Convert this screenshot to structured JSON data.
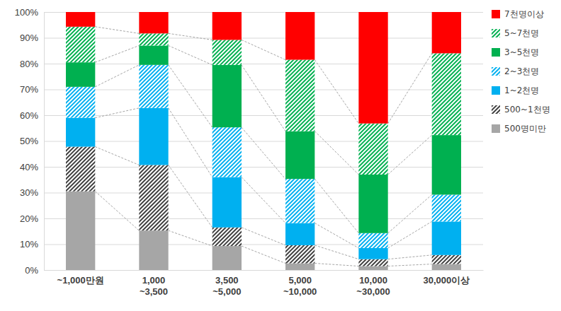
{
  "chart_data": {
    "type": "bar",
    "stacked": true,
    "grid": true,
    "legend": "right",
    "categories": [
      "~1,000만원",
      "1,000\n~3,500",
      "3,500\n~5,000",
      "5,000\n~10,000",
      "10,000\n~30,000",
      "30,000이상"
    ],
    "ylim": [
      0,
      100
    ],
    "yticks": [
      {
        "value": 0,
        "label": "0%"
      },
      {
        "value": 10,
        "label": "10%"
      },
      {
        "value": 20,
        "label": "20%"
      },
      {
        "value": 30,
        "label": "30%"
      },
      {
        "value": 40,
        "label": "40%"
      },
      {
        "value": 50,
        "label": "50%"
      },
      {
        "value": 60,
        "label": "60%"
      },
      {
        "value": 70,
        "label": "70%"
      },
      {
        "value": 80,
        "label": "80%"
      },
      {
        "value": 90,
        "label": "90%"
      },
      {
        "value": 100,
        "label": "100%"
      }
    ],
    "series": [
      {
        "name": "500명미만",
        "color": "#a6a6a6",
        "values": [
          30.5,
          15.3,
          9.3,
          2.6,
          1.5,
          2.3
        ]
      },
      {
        "name": "500~1천명",
        "color": "#404040",
        "line_style": "hatch",
        "values": [
          17.3,
          25.4,
          7.2,
          7.0,
          2.7,
          3.5
        ]
      },
      {
        "name": "1~2천명",
        "color": "#00b0f0",
        "values": [
          11.2,
          22.1,
          19.5,
          8.6,
          4.3,
          13.0
        ]
      },
      {
        "name": "2~3천명",
        "color": "#00b0f0",
        "line_style": "hatch",
        "values": [
          12.0,
          16.7,
          19.3,
          17.1,
          5.8,
          10.4
        ]
      },
      {
        "name": "3~5천명",
        "color": "#00b050",
        "values": [
          9.5,
          7.5,
          24.2,
          18.5,
          22.7,
          23.1
        ]
      },
      {
        "name": "5~7천명",
        "color": "#00b050",
        "line_style": "hatch",
        "values": [
          13.8,
          4.7,
          9.7,
          27.7,
          19.8,
          31.7
        ]
      },
      {
        "name": "7천명이상",
        "color": "#ff0000",
        "values": [
          5.7,
          8.3,
          10.8,
          18.5,
          43.2,
          16.0
        ]
      }
    ]
  }
}
